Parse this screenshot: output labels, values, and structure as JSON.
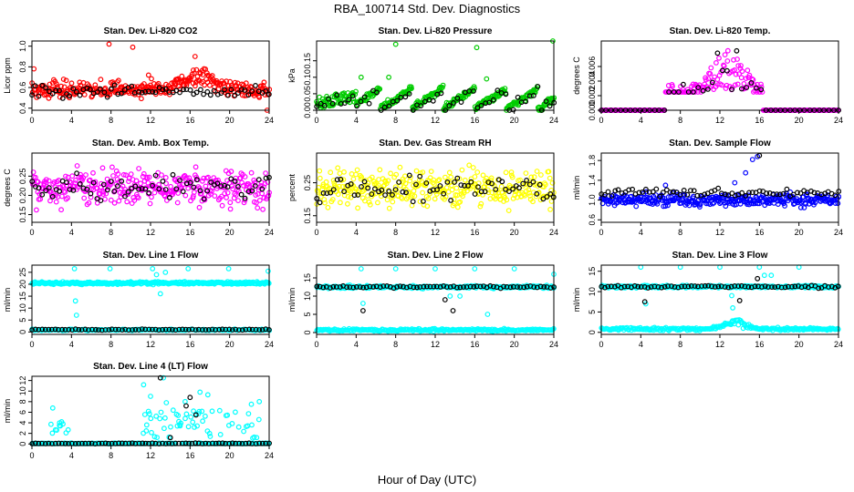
{
  "main_title": "RBA_100714  Std. Dev. Diagnostics",
  "x_axis_label": "Hour of Day (UTC)",
  "colors": {
    "red": "#ff0000",
    "green": "#00cc00",
    "magenta": "#ff00ff",
    "yellow": "#ffff00",
    "blue": "#0000ff",
    "cyan": "#00ffff",
    "black": "#000000"
  },
  "chart_data": [
    {
      "id": "co2",
      "type": "scatter",
      "title": "Stan. Dev. Li-820 CO2",
      "ylabel": "Licor ppm",
      "xlim": [
        0,
        24
      ],
      "ylim": [
        0.38,
        1.05
      ],
      "xticks": [
        0,
        4,
        8,
        12,
        16,
        20,
        24
      ],
      "yticks": [
        0.4,
        0.6,
        0.8,
        1.0
      ],
      "ytick_labels": [
        "0.4",
        "0.6",
        "0.8",
        "1.0"
      ],
      "series": [
        {
          "name": "all",
          "color": "#ff0000",
          "pattern": "noise",
          "n": 340,
          "base": 0.58,
          "spread": 0.07,
          "bump": {
            "center": 17,
            "width": 2.0,
            "height": 0.15
          },
          "extra": [
            [
              7.8,
              1.02
            ],
            [
              10.2,
              0.99
            ],
            [
              11.8,
              0.72
            ],
            [
              16.5,
              0.9
            ],
            [
              23.8,
              0.38
            ],
            [
              0.2,
              0.78
            ],
            [
              3.2,
              0.68
            ]
          ]
        },
        {
          "name": "hourly",
          "color": "#000000",
          "pattern": "noise",
          "n": 70,
          "base": 0.56,
          "spread": 0.05
        }
      ]
    },
    {
      "id": "pressure",
      "type": "scatter",
      "title": "Stan. Dev. Li-820 Pressure",
      "ylabel": "kPa",
      "xlim": [
        0,
        24
      ],
      "ylim": [
        0,
        0.21
      ],
      "xticks": [
        0,
        4,
        8,
        12,
        16,
        20,
        24
      ],
      "yticks": [
        0.0,
        0.05,
        0.1,
        0.15
      ],
      "ytick_labels": [
        "0.00",
        "0.05",
        "0.10",
        "0.15"
      ],
      "series": [
        {
          "name": "all",
          "color": "#00cc00",
          "pattern": "pressure",
          "n": 360,
          "base": 0.04,
          "spread": 0.025,
          "extra": [
            [
              8.0,
              0.2
            ],
            [
              16.2,
              0.19
            ],
            [
              23.9,
              0.21
            ],
            [
              4.5,
              0.1
            ],
            [
              7.3,
              0.1
            ],
            [
              17.2,
              0.095
            ]
          ]
        },
        {
          "name": "hourly",
          "color": "#000000",
          "pattern": "pressure",
          "n": 60,
          "base": 0.03,
          "spread": 0.02
        }
      ]
    },
    {
      "id": "temp",
      "type": "scatter",
      "title": "Stan. Dev. Li-820 Temp.",
      "ylabel": "degrees C",
      "xlim": [
        0,
        24
      ],
      "ylim": [
        0,
        0.0095
      ],
      "xticks": [
        0,
        4,
        8,
        12,
        16,
        20,
        24
      ],
      "yticks": [
        0.0,
        0.002,
        0.004,
        0.006
      ],
      "ytick_labels": [
        "0.000",
        "0.002",
        "0.004",
        "0.006"
      ],
      "series": [
        {
          "name": "all",
          "color": "#ff00ff",
          "pattern": "temp",
          "n": 300,
          "base": 0.0,
          "spread": 0.0
        },
        {
          "name": "hourly",
          "color": "#000000",
          "pattern": "temp",
          "n": 50,
          "base": 0.0,
          "spread": 0.0
        }
      ]
    },
    {
      "id": "ambbox",
      "type": "scatter",
      "title": "Stan. Dev. Amb. Box Temp.",
      "ylabel": "degrees C",
      "xlim": [
        0,
        24
      ],
      "ylim": [
        0.13,
        0.31
      ],
      "xticks": [
        0,
        4,
        8,
        12,
        16,
        20,
        24
      ],
      "yticks": [
        0.15,
        0.2,
        0.25
      ],
      "ytick_labels": [
        "0.15",
        "0.20",
        "0.25"
      ],
      "series": [
        {
          "name": "all",
          "color": "#ff00ff",
          "pattern": "noise",
          "n": 340,
          "base": 0.22,
          "spread": 0.045
        },
        {
          "name": "hourly",
          "color": "#000000",
          "pattern": "noise",
          "n": 70,
          "base": 0.22,
          "spread": 0.03
        }
      ]
    },
    {
      "id": "rh",
      "type": "scatter",
      "title": "Stan. Dev. Gas Stream RH",
      "ylabel": "percent",
      "xlim": [
        0,
        24
      ],
      "ylim": [
        0.13,
        0.34
      ],
      "xticks": [
        0,
        4,
        8,
        12,
        16,
        20,
        24
      ],
      "yticks": [
        0.15,
        0.25
      ],
      "ytick_labels": [
        "0.15",
        "0.25"
      ],
      "series": [
        {
          "name": "all",
          "color": "#ffff00",
          "pattern": "noise",
          "n": 340,
          "base": 0.235,
          "spread": 0.05
        },
        {
          "name": "hourly",
          "color": "#000000",
          "pattern": "noise",
          "n": 70,
          "base": 0.23,
          "spread": 0.035
        }
      ]
    },
    {
      "id": "sampleflow",
      "type": "scatter",
      "title": "Stan. Dev. Sample Flow",
      "ylabel": "ml/min",
      "xlim": [
        0,
        24
      ],
      "ylim": [
        0.55,
        1.95
      ],
      "xticks": [
        0,
        4,
        8,
        12,
        16,
        20,
        24
      ],
      "yticks": [
        0.6,
        1.0,
        1.4,
        1.8
      ],
      "ytick_labels": [
        "0.6",
        "1.0",
        "1.4",
        "1.8"
      ],
      "series": [
        {
          "name": "all",
          "color": "#0000ff",
          "pattern": "noise",
          "n": 340,
          "base": 1.0,
          "spread": 0.12,
          "extra": [
            [
              15.8,
              1.88
            ],
            [
              15.3,
              1.82
            ],
            [
              14.6,
              1.55
            ],
            [
              13.5,
              1.35
            ],
            [
              6.5,
              1.3
            ]
          ]
        },
        {
          "name": "hourly",
          "color": "#000000",
          "pattern": "noise",
          "n": 70,
          "base": 1.15,
          "spread": 0.07,
          "extra": [
            [
              16.0,
              1.9
            ]
          ]
        }
      ]
    },
    {
      "id": "line1",
      "type": "scatter",
      "title": "Stan. Dev. Line 1 Flow",
      "ylabel": "ml/min",
      "xlim": [
        0,
        24
      ],
      "ylim": [
        -1,
        28
      ],
      "xticks": [
        0,
        4,
        8,
        12,
        16,
        20,
        24
      ],
      "yticks": [
        0,
        5,
        10,
        15,
        20,
        25
      ],
      "ytick_labels": [
        "0",
        "5",
        "10",
        "15",
        "20",
        "25"
      ],
      "series": [
        {
          "name": "all-high",
          "color": "#00ffff",
          "pattern": "band",
          "n": 330,
          "base": 20.5,
          "spread": 0.5,
          "extra": [
            [
              4.3,
              26.5
            ],
            [
              7.9,
              26.5
            ],
            [
              12.2,
              26.5
            ],
            [
              15.8,
              26.5
            ],
            [
              19.9,
              26.5
            ],
            [
              23.9,
              25.5
            ],
            [
              4.5,
              7
            ],
            [
              4.4,
              13
            ],
            [
              13.0,
              16
            ],
            [
              12.6,
              24
            ],
            [
              13.5,
              25
            ]
          ]
        },
        {
          "name": "all-low",
          "color": "#00ffff",
          "pattern": "band",
          "n": 200,
          "base": 0.9,
          "spread": 0.3
        },
        {
          "name": "hourly",
          "color": "#000000",
          "pattern": "band",
          "n": 72,
          "base": 1.0,
          "spread": 0.2
        }
      ]
    },
    {
      "id": "line2",
      "type": "scatter",
      "title": "Stan. Dev. Line 2 Flow",
      "ylabel": "ml/min",
      "xlim": [
        0,
        24
      ],
      "ylim": [
        -0.5,
        18.5
      ],
      "xticks": [
        0,
        4,
        8,
        12,
        16,
        20,
        24
      ],
      "yticks": [
        0,
        5,
        10,
        15
      ],
      "ytick_labels": [
        "0",
        "5",
        "10",
        "15"
      ],
      "series": [
        {
          "name": "all-high",
          "color": "#00ffff",
          "pattern": "band",
          "n": 300,
          "base": 12.5,
          "spread": 0.35,
          "extra": [
            [
              4.5,
              17.5
            ],
            [
              8.0,
              17.5
            ],
            [
              12.0,
              17.5
            ],
            [
              16.0,
              17.5
            ],
            [
              20.0,
              17.5
            ],
            [
              24.0,
              16
            ],
            [
              4.7,
              8
            ],
            [
              17.3,
              5
            ],
            [
              13.5,
              10
            ],
            [
              14.5,
              10
            ]
          ]
        },
        {
          "name": "all-low",
          "color": "#00ffff",
          "pattern": "band",
          "n": 250,
          "base": 0.7,
          "spread": 0.3
        },
        {
          "name": "hourly",
          "color": "#000000",
          "pattern": "band",
          "n": 72,
          "base": 12.5,
          "spread": 0.3,
          "extra": [
            [
              4.7,
              6
            ],
            [
              13.0,
              9
            ],
            [
              13.8,
              6
            ]
          ]
        }
      ]
    },
    {
      "id": "line3",
      "type": "scatter",
      "title": "Stan. Dev. Line 3 Flow",
      "ylabel": "ml/min",
      "xlim": [
        0,
        24
      ],
      "ylim": [
        -0.5,
        16.5
      ],
      "xticks": [
        0,
        4,
        8,
        12,
        16,
        20,
        24
      ],
      "yticks": [
        0,
        5,
        10,
        15
      ],
      "ytick_labels": [
        "0",
        "5",
        "10",
        "15"
      ],
      "series": [
        {
          "name": "all-high",
          "color": "#00ffff",
          "pattern": "band",
          "n": 300,
          "base": 11.2,
          "spread": 0.3,
          "extra": [
            [
              4.0,
              16
            ],
            [
              8.0,
              16
            ],
            [
              12.0,
              16
            ],
            [
              16.0,
              16
            ],
            [
              20.0,
              16
            ],
            [
              4.5,
              7
            ],
            [
              13.3,
              6
            ],
            [
              13.2,
              9
            ],
            [
              16.5,
              14
            ],
            [
              17.2,
              14
            ]
          ]
        },
        {
          "name": "all-low",
          "color": "#00ffff",
          "pattern": "band",
          "n": 250,
          "base": 0.8,
          "spread": 0.35,
          "bump": {
            "center": 13.5,
            "width": 1.5,
            "height": 2.0
          }
        },
        {
          "name": "hourly",
          "color": "#000000",
          "pattern": "band",
          "n": 72,
          "base": 11.2,
          "spread": 0.25,
          "extra": [
            [
              4.4,
              7.5
            ],
            [
              14.0,
              7.8
            ],
            [
              15.8,
              13.2
            ]
          ]
        }
      ]
    },
    {
      "id": "line4",
      "type": "scatter",
      "title": "Stan. Dev. Line 4 (LT) Flow",
      "ylabel": "ml/min",
      "xlim": [
        0,
        24
      ],
      "ylim": [
        -0.3,
        12.8
      ],
      "xticks": [
        0,
        4,
        8,
        12,
        16,
        20,
        24
      ],
      "yticks": [
        0,
        2,
        4,
        6,
        8,
        10,
        12
      ],
      "ytick_labels": [
        "0",
        "2",
        "4",
        "6",
        "8",
        "10",
        "12"
      ],
      "series": [
        {
          "name": "all",
          "color": "#00ffff",
          "pattern": "line4",
          "n": 300,
          "base": 0.1,
          "spread": 0.1,
          "extra": [
            [
              2.1,
              6.8
            ],
            [
              2.8,
              4.0
            ],
            [
              3.0,
              4.2
            ],
            [
              11.3,
              11.2
            ],
            [
              12.0,
              9.0
            ],
            [
              13.3,
              12.5
            ],
            [
              13.6,
              7.8
            ],
            [
              15.5,
              8.0
            ],
            [
              17.0,
              9.8
            ],
            [
              17.8,
              9.3
            ],
            [
              19.0,
              6.3
            ],
            [
              22.2,
              7.5
            ],
            [
              23.0,
              8.0
            ]
          ]
        },
        {
          "name": "hourly",
          "color": "#000000",
          "pattern": "band",
          "n": 72,
          "base": 0.1,
          "spread": 0.08,
          "extra": [
            [
              13.0,
              12.5
            ],
            [
              16.0,
              8.8
            ],
            [
              15.6,
              7.2
            ],
            [
              16.6,
              5.5
            ],
            [
              14.0,
              1.2
            ]
          ]
        }
      ]
    }
  ]
}
